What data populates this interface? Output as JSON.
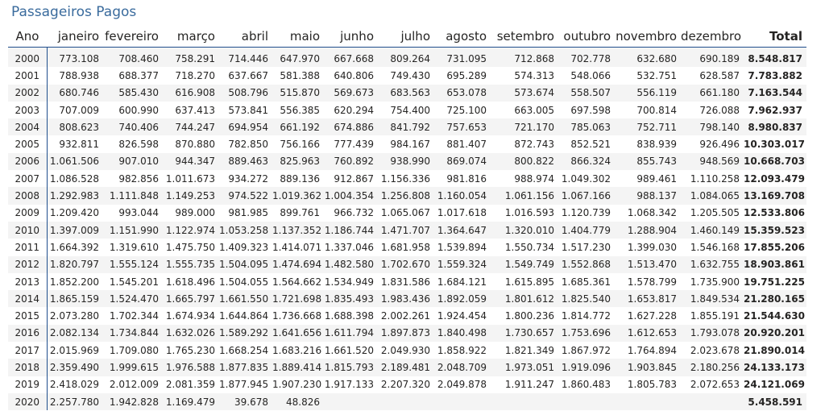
{
  "title": "Passageiros Pagos",
  "chart_data": {
    "type": "table",
    "title": "Passageiros Pagos",
    "columns": [
      "Ano",
      "janeiro",
      "fevereiro",
      "março",
      "abril",
      "maio",
      "junho",
      "julho",
      "agosto",
      "setembro",
      "outubro",
      "novembro",
      "dezembro",
      "Total"
    ],
    "rows": [
      [
        "2000",
        "773.108",
        "708.460",
        "758.291",
        "714.446",
        "647.970",
        "667.668",
        "809.264",
        "731.095",
        "712.868",
        "702.778",
        "632.680",
        "690.189",
        "8.548.817"
      ],
      [
        "2001",
        "788.938",
        "688.377",
        "718.270",
        "637.667",
        "581.388",
        "640.806",
        "749.430",
        "695.289",
        "574.313",
        "548.066",
        "532.751",
        "628.587",
        "7.783.882"
      ],
      [
        "2002",
        "680.746",
        "585.430",
        "616.908",
        "508.796",
        "515.870",
        "569.673",
        "683.563",
        "653.078",
        "573.674",
        "558.507",
        "556.119",
        "661.180",
        "7.163.544"
      ],
      [
        "2003",
        "707.009",
        "600.990",
        "637.413",
        "573.841",
        "556.385",
        "620.294",
        "754.400",
        "725.100",
        "663.005",
        "697.598",
        "700.814",
        "726.088",
        "7.962.937"
      ],
      [
        "2004",
        "808.623",
        "740.406",
        "744.247",
        "694.954",
        "661.192",
        "674.886",
        "841.792",
        "757.653",
        "721.170",
        "785.063",
        "752.711",
        "798.140",
        "8.980.837"
      ],
      [
        "2005",
        "932.811",
        "826.598",
        "870.880",
        "782.850",
        "756.166",
        "777.439",
        "984.167",
        "881.407",
        "872.743",
        "852.521",
        "838.939",
        "926.496",
        "10.303.017"
      ],
      [
        "2006",
        "1.061.506",
        "907.010",
        "944.347",
        "889.463",
        "825.963",
        "760.892",
        "938.990",
        "869.074",
        "800.822",
        "866.324",
        "855.743",
        "948.569",
        "10.668.703"
      ],
      [
        "2007",
        "1.086.528",
        "982.856",
        "1.011.673",
        "934.272",
        "889.136",
        "912.867",
        "1.156.336",
        "981.816",
        "988.974",
        "1.049.302",
        "989.461",
        "1.110.258",
        "12.093.479"
      ],
      [
        "2008",
        "1.292.983",
        "1.111.848",
        "1.149.253",
        "974.522",
        "1.019.362",
        "1.004.354",
        "1.256.808",
        "1.160.054",
        "1.061.156",
        "1.067.166",
        "988.137",
        "1.084.065",
        "13.169.708"
      ],
      [
        "2009",
        "1.209.420",
        "993.044",
        "989.000",
        "981.985",
        "899.761",
        "966.732",
        "1.065.067",
        "1.017.618",
        "1.016.593",
        "1.120.739",
        "1.068.342",
        "1.205.505",
        "12.533.806"
      ],
      [
        "2010",
        "1.397.009",
        "1.151.990",
        "1.122.974",
        "1.053.258",
        "1.137.352",
        "1.186.744",
        "1.471.707",
        "1.364.647",
        "1.320.010",
        "1.404.779",
        "1.288.904",
        "1.460.149",
        "15.359.523"
      ],
      [
        "2011",
        "1.664.392",
        "1.319.610",
        "1.475.750",
        "1.409.323",
        "1.414.071",
        "1.337.046",
        "1.681.958",
        "1.539.894",
        "1.550.734",
        "1.517.230",
        "1.399.030",
        "1.546.168",
        "17.855.206"
      ],
      [
        "2012",
        "1.820.797",
        "1.555.124",
        "1.555.735",
        "1.504.095",
        "1.474.694",
        "1.482.580",
        "1.702.670",
        "1.559.324",
        "1.549.749",
        "1.552.868",
        "1.513.470",
        "1.632.755",
        "18.903.861"
      ],
      [
        "2013",
        "1.852.200",
        "1.545.201",
        "1.618.496",
        "1.504.055",
        "1.564.662",
        "1.534.949",
        "1.831.586",
        "1.684.121",
        "1.615.895",
        "1.685.361",
        "1.578.799",
        "1.735.900",
        "19.751.225"
      ],
      [
        "2014",
        "1.865.159",
        "1.524.470",
        "1.665.797",
        "1.661.550",
        "1.721.698",
        "1.835.493",
        "1.983.436",
        "1.892.059",
        "1.801.612",
        "1.825.540",
        "1.653.817",
        "1.849.534",
        "21.280.165"
      ],
      [
        "2015",
        "2.073.280",
        "1.702.344",
        "1.674.934",
        "1.644.864",
        "1.736.668",
        "1.688.398",
        "2.002.261",
        "1.924.454",
        "1.800.236",
        "1.814.772",
        "1.627.228",
        "1.855.191",
        "21.544.630"
      ],
      [
        "2016",
        "2.082.134",
        "1.734.844",
        "1.632.026",
        "1.589.292",
        "1.641.656",
        "1.611.794",
        "1.897.873",
        "1.840.498",
        "1.730.657",
        "1.753.696",
        "1.612.653",
        "1.793.078",
        "20.920.201"
      ],
      [
        "2017",
        "2.015.969",
        "1.709.080",
        "1.765.230",
        "1.668.254",
        "1.683.216",
        "1.661.520",
        "2.049.930",
        "1.858.922",
        "1.821.349",
        "1.867.972",
        "1.764.894",
        "2.023.678",
        "21.890.014"
      ],
      [
        "2018",
        "2.359.490",
        "1.999.615",
        "1.976.588",
        "1.877.835",
        "1.889.414",
        "1.815.793",
        "2.189.481",
        "2.048.709",
        "1.973.051",
        "1.919.096",
        "1.903.845",
        "2.180.256",
        "24.133.173"
      ],
      [
        "2019",
        "2.418.029",
        "2.012.009",
        "2.081.359",
        "1.877.945",
        "1.907.230",
        "1.917.133",
        "2.207.320",
        "2.049.878",
        "1.911.247",
        "1.860.483",
        "1.805.783",
        "2.072.653",
        "24.121.069"
      ],
      [
        "2020",
        "2.257.780",
        "1.942.828",
        "1.169.479",
        "39.678",
        "48.826",
        "",
        "",
        "",
        "",
        "",
        "",
        "",
        "5.458.591"
      ]
    ]
  },
  "colors": {
    "title": "#3a6b9d",
    "rule": "#1f4e8c",
    "stripe": "#f4f4f4",
    "text": "#252423"
  }
}
